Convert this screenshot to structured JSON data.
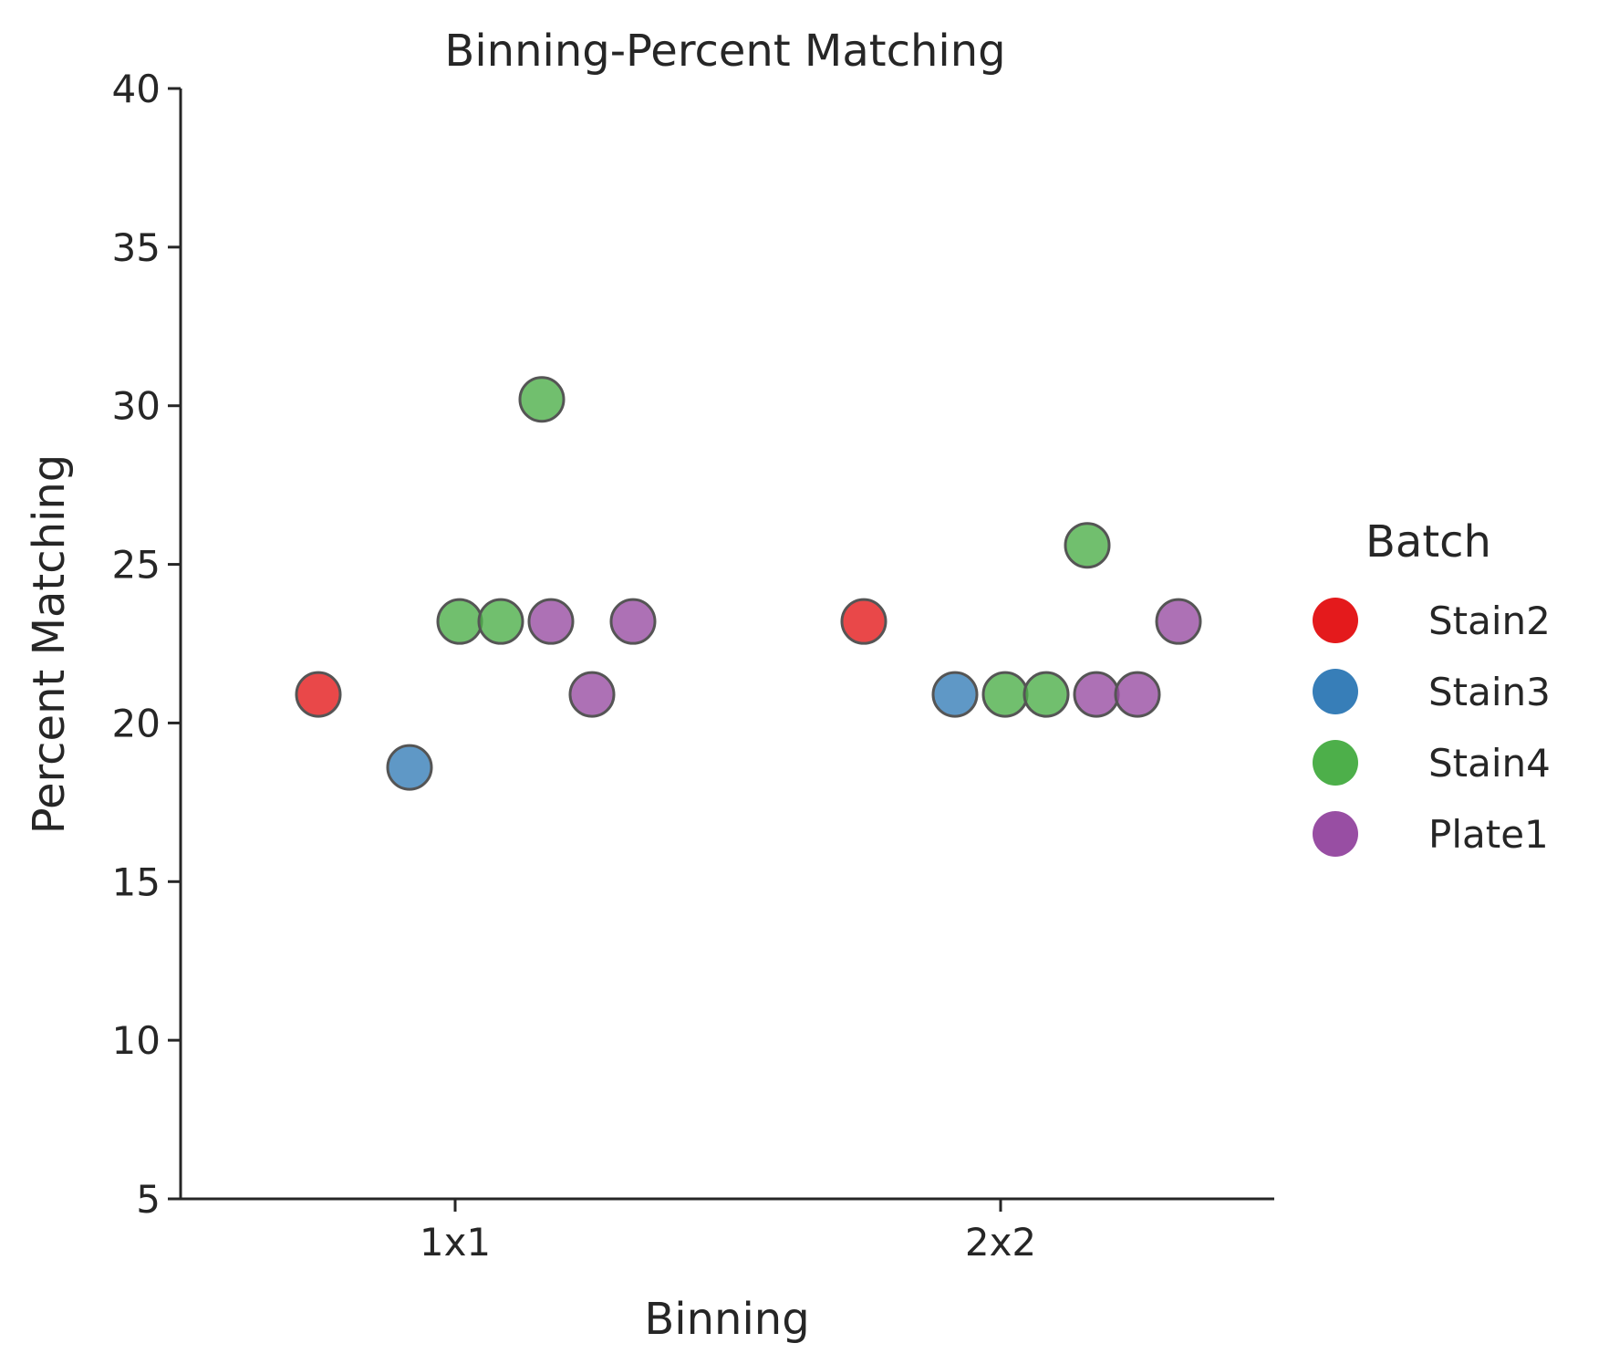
{
  "chart_data": {
    "type": "scatter",
    "title": "Binning-Percent Matching",
    "xlabel": "Binning",
    "ylabel": "Percent Matching",
    "categories": [
      "1x1",
      "2x2"
    ],
    "ylim": [
      5,
      40
    ],
    "yticks": [
      5,
      10,
      15,
      20,
      25,
      30,
      35,
      40
    ],
    "grid": false,
    "legend": {
      "title": "Batch",
      "placement": "right",
      "entries": [
        "Stain2",
        "Stain3",
        "Stain4",
        "Plate1"
      ]
    },
    "series": [
      {
        "name": "Stain2",
        "color": "#e41a1c",
        "points": [
          {
            "category": "1x1",
            "y": 20.9
          },
          {
            "category": "2x2",
            "y": 23.2
          }
        ]
      },
      {
        "name": "Stain3",
        "color": "#377eb8",
        "points": [
          {
            "category": "1x1",
            "y": 18.6
          },
          {
            "category": "2x2",
            "y": 20.9
          }
        ]
      },
      {
        "name": "Stain4",
        "color": "#4daf4a",
        "points": [
          {
            "category": "1x1",
            "y": 23.2
          },
          {
            "category": "1x1",
            "y": 23.2
          },
          {
            "category": "1x1",
            "y": 30.2
          },
          {
            "category": "2x2",
            "y": 20.9
          },
          {
            "category": "2x2",
            "y": 20.9
          },
          {
            "category": "2x2",
            "y": 25.6
          }
        ]
      },
      {
        "name": "Plate1",
        "color": "#984ea3",
        "points": [
          {
            "category": "1x1",
            "y": 23.2
          },
          {
            "category": "1x1",
            "y": 20.9
          },
          {
            "category": "1x1",
            "y": 23.2
          },
          {
            "category": "2x2",
            "y": 20.9
          },
          {
            "category": "2x2",
            "y": 20.9
          },
          {
            "category": "2x2",
            "y": 23.2
          }
        ]
      }
    ]
  }
}
